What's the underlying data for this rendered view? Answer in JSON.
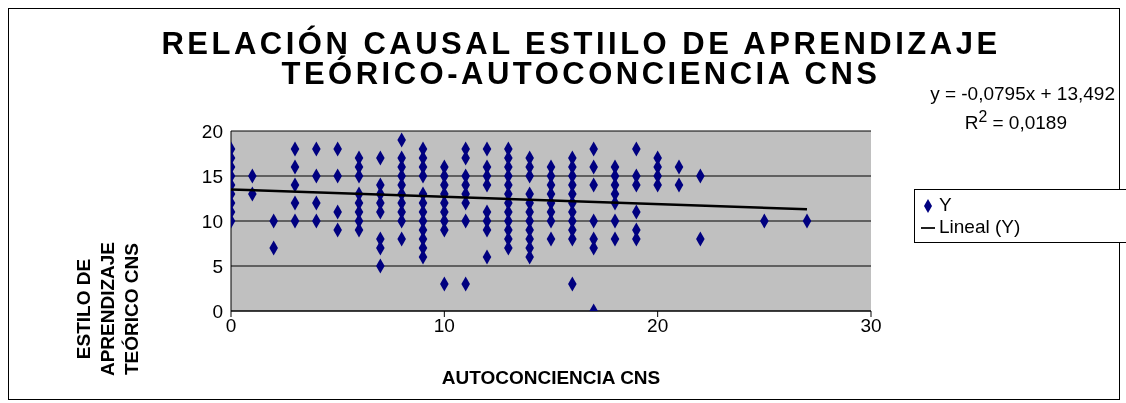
{
  "chart_data": {
    "type": "scatter",
    "title": "RELACIÓN CAUSAL ESTIILO DE APRENDIZAJE TEÓRICO-AUTOCONCIENCIA CNS",
    "xlabel": "AUTOCONCIENCIA CNS",
    "ylabel": "ESTILO DE APRENDIZAJE TEÓRICO CNS",
    "annotations": [
      "y = -0,0795x + 13,492",
      "R$^{2}$ = 0,0189"
    ],
    "xlim": [
      0,
      30
    ],
    "xticks": [
      0,
      10,
      20,
      30
    ],
    "ylim": [
      0,
      20
    ],
    "yticks": [
      0,
      5,
      10,
      15,
      20
    ],
    "grid": "y",
    "legend": "right",
    "marker": "diamond",
    "series": [
      {
        "name": "Y",
        "color": "#000080",
        "x": [
          0,
          0,
          0,
          0,
          0,
          0,
          0,
          0,
          0,
          1,
          1,
          2,
          2,
          3,
          3,
          3,
          3,
          3,
          4,
          4,
          4,
          4,
          5,
          5,
          5,
          5,
          6,
          6,
          6,
          6,
          6,
          6,
          6,
          6,
          7,
          7,
          7,
          7,
          7,
          7,
          7,
          7,
          8,
          8,
          8,
          8,
          8,
          8,
          8,
          8,
          8,
          8,
          9,
          9,
          9,
          9,
          9,
          9,
          9,
          9,
          9,
          9,
          9,
          9,
          10,
          10,
          10,
          10,
          10,
          10,
          10,
          10,
          10,
          11,
          11,
          11,
          11,
          11,
          11,
          11,
          11,
          12,
          12,
          12,
          12,
          12,
          12,
          12,
          12,
          13,
          13,
          13,
          13,
          13,
          13,
          13,
          13,
          13,
          13,
          13,
          13,
          14,
          14,
          14,
          14,
          14,
          14,
          14,
          14,
          14,
          14,
          14,
          15,
          15,
          15,
          15,
          15,
          15,
          15,
          15,
          16,
          16,
          16,
          16,
          16,
          16,
          16,
          16,
          16,
          16,
          16,
          17,
          17,
          17,
          17,
          17,
          17,
          17,
          18,
          18,
          18,
          18,
          18,
          18,
          18,
          19,
          19,
          19,
          19,
          19,
          19,
          20,
          20,
          20,
          20,
          21,
          21,
          22,
          22,
          25,
          27
        ],
        "values": [
          10,
          11,
          12,
          13,
          14,
          15,
          16,
          17,
          18,
          15,
          13,
          10,
          7,
          18,
          16,
          14,
          12,
          10,
          18,
          15,
          12,
          10,
          18,
          15,
          11,
          9,
          17,
          16,
          15,
          13,
          12,
          11,
          10,
          9,
          17,
          14,
          13,
          12,
          11,
          8,
          7,
          5,
          19,
          17,
          16,
          15,
          14,
          13,
          12,
          11,
          10,
          8,
          18,
          17,
          16,
          15,
          13,
          12,
          11,
          10,
          9,
          8,
          7,
          6,
          16,
          15,
          14,
          13,
          12,
          11,
          10,
          9,
          3,
          18,
          17,
          15,
          14,
          13,
          12,
          10,
          3,
          18,
          16,
          15,
          14,
          11,
          10,
          9,
          6,
          18,
          17,
          16,
          15,
          14,
          13,
          12,
          11,
          10,
          9,
          8,
          7,
          17,
          16,
          15,
          13,
          12,
          11,
          10,
          9,
          8,
          7,
          6,
          16,
          15,
          14,
          13,
          12,
          11,
          10,
          8,
          17,
          16,
          15,
          14,
          13,
          12,
          11,
          10,
          9,
          8,
          3,
          18,
          16,
          14,
          10,
          8,
          7,
          0,
          16,
          15,
          14,
          13,
          12,
          10,
          8,
          18,
          15,
          14,
          11,
          9,
          8,
          17,
          16,
          15,
          14,
          16,
          14,
          15,
          8,
          10,
          10
        ]
      },
      {
        "name": "Lineal (Y)",
        "type": "line",
        "marker": "none",
        "color": "#000000",
        "x": [
          0,
          27
        ],
        "values": [
          13.5,
          11.3
        ]
      }
    ]
  }
}
